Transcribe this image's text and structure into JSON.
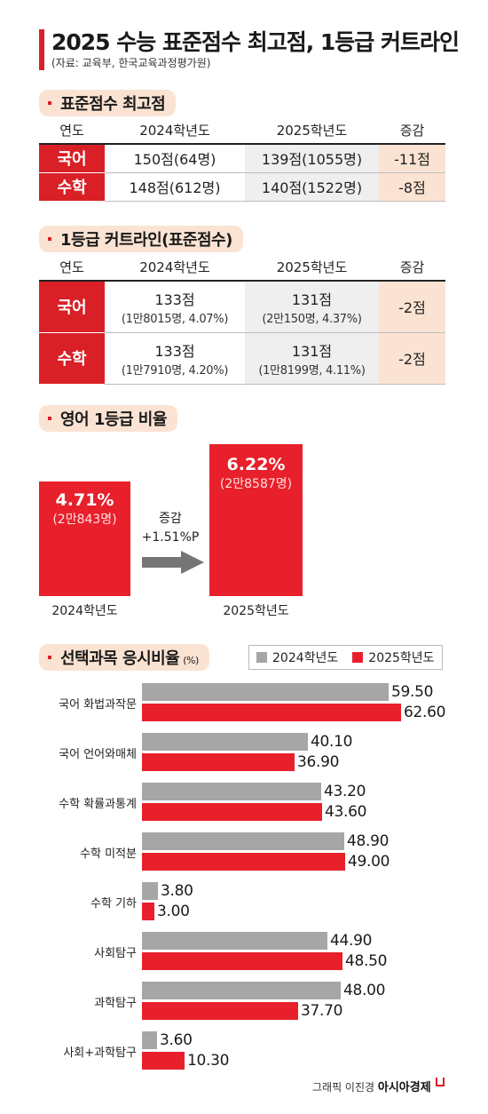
{
  "header": {
    "title": "2025 수능 표준점수 최고점, 1등급 커트라인",
    "source": "(자료: 교육부, 한국교육과정평가원)"
  },
  "colors": {
    "accent_red": "#d92027",
    "bar_2024": "#a6a6a6",
    "bar_2025": "#e8202b",
    "pill_bg": "#fbe3d3"
  },
  "table1": {
    "title": "표준점수 최고점",
    "headers": [
      "연도",
      "2024학년도",
      "2025학년도",
      "증감"
    ],
    "rows": [
      {
        "subject": "국어",
        "y2024": "150점(64명)",
        "y2025": "139점(1055명)",
        "diff": "-11점"
      },
      {
        "subject": "수학",
        "y2024": "148점(612명)",
        "y2025": "140점(1522명)",
        "diff": "-8점"
      }
    ]
  },
  "table2": {
    "title": "1등급 커트라인(표준점수)",
    "headers": [
      "연도",
      "2024학년도",
      "2025학년도",
      "증감"
    ],
    "rows": [
      {
        "subject": "국어",
        "y2024_score": "133점",
        "y2024_detail": "(1만8015명, 4.07%)",
        "y2025_score": "131점",
        "y2025_detail": "(2만150명, 4.37%)",
        "diff": "-2점"
      },
      {
        "subject": "수학",
        "y2024_score": "133점",
        "y2024_detail": "(1만7910명, 4.20%)",
        "y2025_score": "131점",
        "y2025_detail": "(1만8199명, 4.11%)",
        "diff": "-2점"
      }
    ]
  },
  "english": {
    "title": "영어 1등급 비율",
    "change_label": "증감",
    "change_value": "+1.51%P",
    "y2024": {
      "pct": "4.71%",
      "count": "(2만843명)",
      "year": "2024학년도"
    },
    "y2025": {
      "pct": "6.22%",
      "count": "(2만8587명)",
      "year": "2025학년도"
    }
  },
  "elective": {
    "title": "선택과목 응시비율",
    "unit": "(%)"
  },
  "chart_data": [
    {
      "type": "bar",
      "title": "영어 1등급 비율",
      "categories": [
        "2024학년도",
        "2025학년도"
      ],
      "values": [
        4.71,
        6.22
      ],
      "value_labels": [
        "4.71%",
        "6.22%"
      ],
      "count_labels": [
        "(2만843명)",
        "(2만8587명)"
      ],
      "annotation": "증감 +1.51%P",
      "ylim": [
        0,
        6.22
      ]
    },
    {
      "type": "bar",
      "orientation": "horizontal",
      "title": "선택과목 응시비율",
      "unit": "(%)",
      "legend": "top-right",
      "grid": false,
      "categories": [
        "국어 화법과작문",
        "국어 언어와매체",
        "수학 확률과통계",
        "수학 미적분",
        "수학 기하",
        "사회탐구",
        "과학탐구",
        "사회+과학탐구"
      ],
      "series": [
        {
          "name": "2024학년도",
          "color": "#a6a6a6",
          "values": [
            59.5,
            40.1,
            43.2,
            48.9,
            3.8,
            44.9,
            48.0,
            3.6
          ],
          "labels": [
            "59.50",
            "40.10",
            "43.20",
            "48.90",
            "3.80",
            "44.90",
            "48.00",
            "3.60"
          ]
        },
        {
          "name": "2025학년도",
          "color": "#e8202b",
          "values": [
            62.6,
            36.9,
            43.6,
            49.0,
            3.0,
            48.5,
            37.7,
            10.3
          ],
          "labels": [
            "62.60",
            "36.90",
            "43.60",
            "49.00",
            "3.00",
            "48.50",
            "37.70",
            "10.30"
          ]
        }
      ],
      "xlim": [
        0,
        62.6
      ]
    }
  ],
  "footer": {
    "credit": "그래픽 이진경",
    "brand": "아시아경제"
  }
}
